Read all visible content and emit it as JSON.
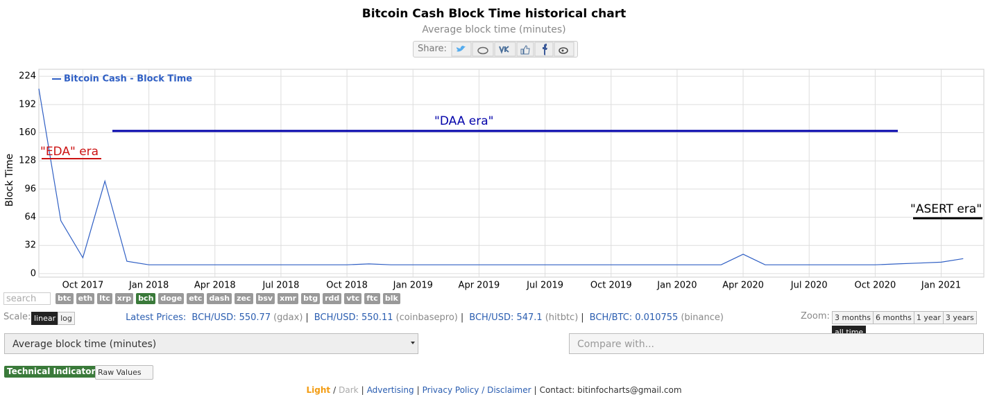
{
  "chart_data": {
    "type": "line",
    "title": "Bitcoin Cash Block Time historical chart",
    "subtitle": "Average block time (minutes)",
    "y_label": "Block Time",
    "x": [
      "2017-08",
      "2017-09",
      "2017-10",
      "2017-11",
      "2017-12",
      "2018-01",
      "2018-02",
      "2018-03",
      "2018-04",
      "2018-05",
      "2018-06",
      "2018-07",
      "2018-08",
      "2018-09",
      "2018-10",
      "2018-11",
      "2018-12",
      "2019-01",
      "2019-02",
      "2019-03",
      "2019-04",
      "2019-05",
      "2019-06",
      "2019-07",
      "2019-08",
      "2019-09",
      "2019-10",
      "2019-11",
      "2019-12",
      "2020-01",
      "2020-02",
      "2020-03",
      "2020-04",
      "2020-05",
      "2020-06",
      "2020-07",
      "2020-08",
      "2020-09",
      "2020-10",
      "2020-11",
      "2020-12",
      "2021-01",
      "2021-02"
    ],
    "series": [
      {
        "name": "Bitcoin Cash - Block Time",
        "color": "#2f5fc4",
        "values": [
          210,
          60,
          18,
          105,
          14,
          10,
          10,
          10,
          10,
          10,
          10,
          10,
          10,
          10,
          10,
          11,
          10,
          10,
          10,
          10,
          10,
          10,
          10,
          10,
          10,
          10,
          10,
          10,
          10,
          10,
          10,
          10,
          22,
          10,
          10,
          10,
          10,
          10,
          10,
          11,
          12,
          13,
          17
        ]
      }
    ],
    "xlim": [
      "2017-08",
      "2021-03"
    ],
    "xticks": [
      {
        "value": "2017-10",
        "label": "Oct 2017"
      },
      {
        "value": "2018-01",
        "label": "Jan 2018"
      },
      {
        "value": "2018-04",
        "label": "Apr 2018"
      },
      {
        "value": "2018-07",
        "label": "Jul 2018"
      },
      {
        "value": "2018-10",
        "label": "Oct 2018"
      },
      {
        "value": "2019-01",
        "label": "Jan 2019"
      },
      {
        "value": "2019-04",
        "label": "Apr 2019"
      },
      {
        "value": "2019-07",
        "label": "Jul 2019"
      },
      {
        "value": "2019-10",
        "label": "Oct 2019"
      },
      {
        "value": "2020-01",
        "label": "Jan 2020"
      },
      {
        "value": "2020-04",
        "label": "Apr 2020"
      },
      {
        "value": "2020-07",
        "label": "Jul 2020"
      },
      {
        "value": "2020-10",
        "label": "Oct 2020"
      },
      {
        "value": "2021-01",
        "label": "Jan 2021"
      }
    ],
    "ylim": [
      -4,
      232
    ],
    "yticks": [
      0,
      32,
      64,
      96,
      128,
      160,
      192,
      224
    ],
    "grid": true,
    "legend": "top-left",
    "annotations": [
      {
        "text": "\"EDA\" era",
        "color": "#cc1111"
      },
      {
        "text": "\"DAA era\"",
        "color": "#0000aa"
      },
      {
        "text": "\"ASERT era\"",
        "color": "#000000"
      }
    ]
  },
  "share": {
    "label": "Share:"
  },
  "search": "search",
  "coins": [
    "btc",
    "eth",
    "ltc",
    "xrp",
    "bch",
    "doge",
    "etc",
    "dash",
    "zec",
    "bsv",
    "xmr",
    "btg",
    "rdd",
    "vtc",
    "ftc",
    "blk"
  ],
  "scale": {
    "label": "Scale:",
    "options": [
      "linear",
      "log"
    ]
  },
  "prices": {
    "label": "Latest Prices:",
    "separator": "|",
    "items": [
      {
        "text": "BCH/USD: 550.77",
        "source": "(gdax)"
      },
      {
        "text": "BCH/USD: 550.11",
        "source": "(coinbasepro)"
      },
      {
        "text": "BCH/USD: 547.1",
        "source": "(hitbtc)"
      },
      {
        "text": "BCH/BTC: 0.010755",
        "source": "(binance)"
      }
    ]
  },
  "zoom": {
    "label": "Zoom:",
    "options": [
      "3 months",
      "6 months",
      "1 year",
      "3 years",
      "all time"
    ]
  },
  "select_metric": "Average block time (minutes)",
  "select_compare": "Compare with...",
  "indicators": {
    "label": "Technical Indicators:",
    "value": "Raw Values"
  },
  "footer": [
    "Light",
    "/",
    "Dark",
    "|",
    "Advertising",
    "|",
    "Privacy Policy / Disclaimer",
    "|",
    "Contact: bitinfocharts@gmail.com"
  ]
}
